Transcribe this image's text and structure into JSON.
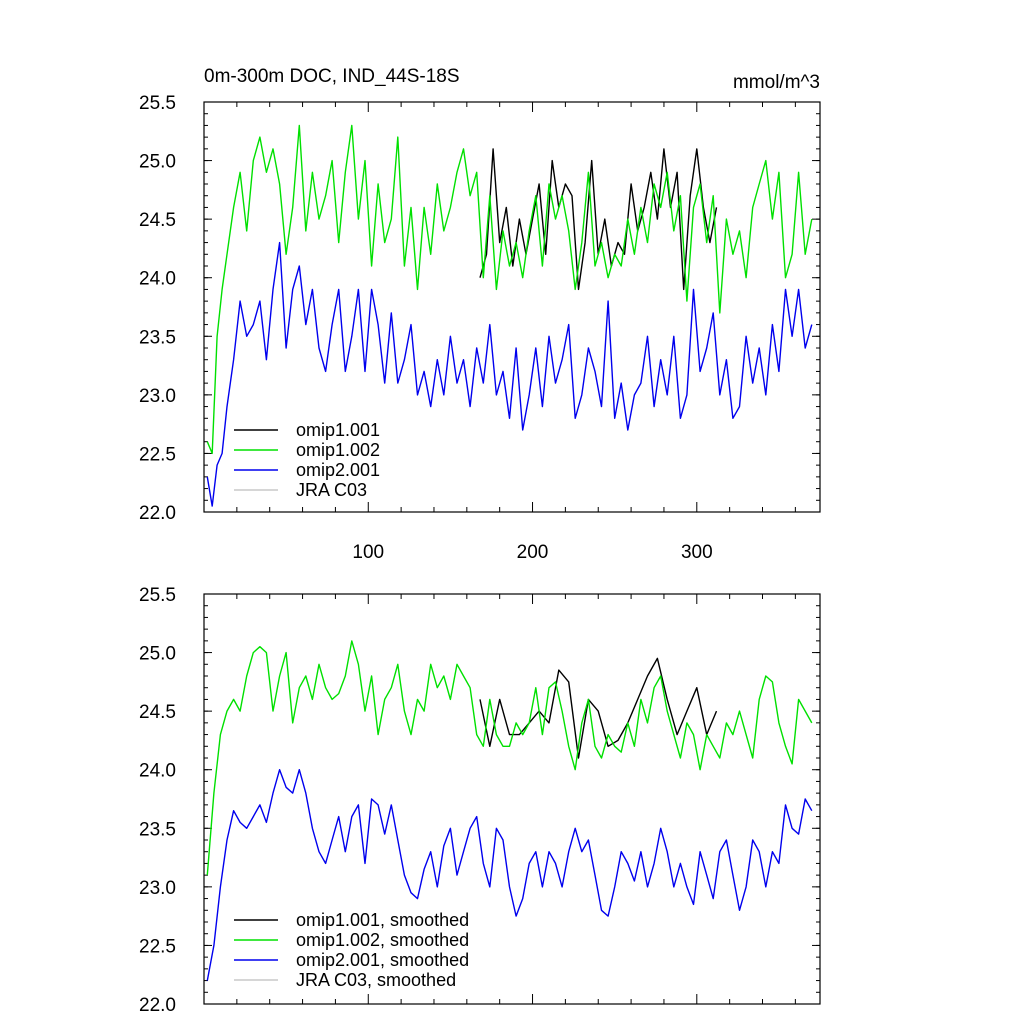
{
  "chart_data": [
    {
      "type": "line",
      "title": "0m-300m DOC, IND_44S-18S",
      "units": "mmol/m^3",
      "xlim": [
        0,
        375
      ],
      "ylim": [
        22.0,
        25.5
      ],
      "x_ticks": [
        100,
        200,
        300
      ],
      "x_tick_labels": [
        "100",
        "200",
        "300"
      ],
      "y_ticks": [
        22.0,
        22.5,
        23.0,
        23.5,
        24.0,
        24.5,
        25.0,
        25.5
      ],
      "y_tick_labels": [
        "22.0",
        "22.5",
        "23.0",
        "23.5",
        "24.0",
        "24.5",
        "25.0",
        "25.5"
      ],
      "legend_position": "bottom-left",
      "series": [
        {
          "name": "omip1.001",
          "color": "#000000",
          "x": [
            168,
            172,
            176,
            180,
            184,
            188,
            192,
            196,
            200,
            204,
            208,
            212,
            216,
            220,
            224,
            228,
            232,
            236,
            240,
            244,
            248,
            252,
            256,
            260,
            264,
            268,
            272,
            276,
            280,
            284,
            288,
            292,
            296,
            300,
            304,
            308,
            312
          ],
          "values": [
            24.0,
            24.2,
            25.1,
            24.3,
            24.6,
            24.1,
            24.5,
            24.2,
            24.5,
            24.8,
            24.2,
            25.0,
            24.6,
            24.8,
            24.7,
            23.9,
            24.3,
            25.0,
            24.2,
            24.5,
            24.1,
            24.3,
            24.2,
            24.8,
            24.4,
            24.6,
            24.9,
            24.5,
            25.1,
            24.6,
            24.9,
            23.9,
            24.7,
            25.1,
            24.6,
            24.3,
            24.6
          ]
        },
        {
          "name": "omip1.002",
          "color": "#00e000",
          "x": [
            2,
            5,
            8,
            11,
            14,
            18,
            22,
            26,
            30,
            34,
            38,
            42,
            46,
            50,
            54,
            58,
            62,
            66,
            70,
            74,
            78,
            82,
            86,
            90,
            94,
            98,
            102,
            106,
            110,
            114,
            118,
            122,
            126,
            130,
            134,
            138,
            142,
            146,
            150,
            154,
            158,
            162,
            166,
            170,
            174,
            178,
            182,
            186,
            190,
            194,
            198,
            202,
            206,
            210,
            214,
            218,
            222,
            226,
            230,
            234,
            238,
            242,
            246,
            250,
            254,
            258,
            262,
            266,
            270,
            274,
            278,
            282,
            286,
            290,
            294,
            298,
            302,
            306,
            310,
            314,
            318,
            322,
            326,
            330,
            334,
            338,
            342,
            346,
            350,
            354,
            358,
            362,
            366,
            370
          ],
          "values": [
            22.6,
            22.5,
            23.5,
            23.9,
            24.2,
            24.6,
            24.9,
            24.4,
            25.0,
            25.2,
            24.9,
            25.1,
            24.8,
            24.2,
            24.6,
            25.3,
            24.4,
            24.9,
            24.5,
            24.7,
            25.0,
            24.3,
            24.9,
            25.3,
            24.5,
            25.0,
            24.1,
            24.8,
            24.3,
            24.5,
            25.2,
            24.1,
            24.6,
            23.9,
            24.6,
            24.2,
            24.8,
            24.4,
            24.6,
            24.9,
            25.1,
            24.7,
            24.9,
            24.0,
            24.7,
            23.9,
            24.4,
            24.1,
            24.3,
            24.0,
            24.4,
            24.7,
            24.1,
            24.8,
            24.5,
            24.7,
            24.4,
            23.9,
            24.3,
            24.9,
            24.1,
            24.3,
            24.0,
            24.2,
            24.1,
            24.5,
            24.2,
            24.6,
            24.3,
            24.8,
            24.6,
            24.9,
            24.4,
            24.7,
            23.8,
            24.6,
            24.8,
            24.3,
            24.7,
            23.7,
            24.5,
            24.2,
            24.4,
            24.0,
            24.6,
            24.8,
            25.0,
            24.5,
            24.9,
            24.0,
            24.2,
            24.9,
            24.2,
            24.5
          ]
        },
        {
          "name": "omip2.001",
          "color": "#0000ee",
          "x": [
            2,
            5,
            8,
            11,
            14,
            18,
            22,
            26,
            30,
            34,
            38,
            42,
            46,
            50,
            54,
            58,
            62,
            66,
            70,
            74,
            78,
            82,
            86,
            90,
            94,
            98,
            102,
            106,
            110,
            114,
            118,
            122,
            126,
            130,
            134,
            138,
            142,
            146,
            150,
            154,
            158,
            162,
            166,
            170,
            174,
            178,
            182,
            186,
            190,
            194,
            198,
            202,
            206,
            210,
            214,
            218,
            222,
            226,
            230,
            234,
            238,
            242,
            246,
            250,
            254,
            258,
            262,
            266,
            270,
            274,
            278,
            282,
            286,
            290,
            294,
            298,
            302,
            306,
            310,
            314,
            318,
            322,
            326,
            330,
            334,
            338,
            342,
            346,
            350,
            354,
            358,
            362,
            366,
            370
          ],
          "values": [
            22.3,
            22.05,
            22.4,
            22.5,
            22.9,
            23.3,
            23.8,
            23.5,
            23.6,
            23.8,
            23.3,
            23.9,
            24.3,
            23.4,
            23.9,
            24.1,
            23.6,
            23.9,
            23.4,
            23.2,
            23.6,
            23.9,
            23.2,
            23.5,
            23.9,
            23.2,
            23.9,
            23.6,
            23.1,
            23.7,
            23.1,
            23.3,
            23.6,
            23.0,
            23.2,
            22.9,
            23.3,
            23.0,
            23.5,
            23.1,
            23.3,
            22.9,
            23.4,
            23.1,
            23.6,
            23.0,
            23.2,
            22.8,
            23.4,
            22.7,
            23.0,
            23.4,
            22.9,
            23.5,
            23.1,
            23.3,
            23.6,
            22.8,
            23.0,
            23.4,
            23.2,
            22.9,
            23.8,
            22.8,
            23.1,
            22.7,
            23.0,
            23.1,
            23.5,
            22.9,
            23.3,
            23.0,
            23.5,
            22.8,
            23.0,
            23.9,
            23.2,
            23.4,
            23.7,
            23.0,
            23.3,
            22.8,
            22.9,
            23.5,
            23.1,
            23.4,
            23.0,
            23.6,
            23.2,
            23.9,
            23.5,
            23.9,
            23.4,
            23.6
          ]
        },
        {
          "name": "JRA C03",
          "color": "#c8c8c8",
          "x": [],
          "values": []
        }
      ]
    },
    {
      "type": "line",
      "title": "",
      "xlim": [
        0,
        375
      ],
      "ylim": [
        22.0,
        25.5
      ],
      "x_ticks": [
        100,
        200,
        300
      ],
      "y_ticks": [
        22.0,
        22.5,
        23.0,
        23.5,
        24.0,
        24.5,
        25.0,
        25.5
      ],
      "y_tick_labels": [
        "22.0",
        "22.5",
        "23.0",
        "23.5",
        "24.0",
        "24.5",
        "25.0",
        "25.5"
      ],
      "legend_position": "bottom-left",
      "series": [
        {
          "name": "omip1.001, smoothed",
          "color": "#000000",
          "x": [
            168,
            174,
            180,
            186,
            192,
            198,
            204,
            210,
            216,
            222,
            228,
            234,
            240,
            246,
            252,
            258,
            264,
            270,
            276,
            282,
            288,
            294,
            300,
            306,
            312
          ],
          "values": [
            24.6,
            24.2,
            24.6,
            24.3,
            24.3,
            24.4,
            24.5,
            24.4,
            24.85,
            24.75,
            24.1,
            24.6,
            24.5,
            24.2,
            24.25,
            24.4,
            24.6,
            24.8,
            24.95,
            24.6,
            24.3,
            24.5,
            24.7,
            24.3,
            24.5
          ]
        },
        {
          "name": "omip1.002, smoothed",
          "color": "#00e000",
          "x": [
            2,
            6,
            10,
            14,
            18,
            22,
            26,
            30,
            34,
            38,
            42,
            46,
            50,
            54,
            58,
            62,
            66,
            70,
            74,
            78,
            82,
            86,
            90,
            94,
            98,
            102,
            106,
            110,
            114,
            118,
            122,
            126,
            130,
            134,
            138,
            142,
            146,
            150,
            154,
            158,
            162,
            166,
            170,
            174,
            178,
            182,
            186,
            190,
            194,
            198,
            202,
            206,
            210,
            214,
            218,
            222,
            226,
            230,
            234,
            238,
            242,
            246,
            250,
            254,
            258,
            262,
            266,
            270,
            274,
            278,
            282,
            286,
            290,
            294,
            298,
            302,
            306,
            310,
            314,
            318,
            322,
            326,
            330,
            334,
            338,
            342,
            346,
            350,
            354,
            358,
            362,
            366,
            370
          ],
          "values": [
            23.1,
            23.8,
            24.3,
            24.5,
            24.6,
            24.5,
            24.8,
            25.0,
            25.05,
            25.0,
            24.5,
            24.8,
            25.0,
            24.4,
            24.7,
            24.8,
            24.6,
            24.9,
            24.7,
            24.6,
            24.65,
            24.8,
            25.1,
            24.9,
            24.5,
            24.8,
            24.3,
            24.6,
            24.7,
            24.9,
            24.5,
            24.3,
            24.6,
            24.5,
            24.9,
            24.7,
            24.8,
            24.6,
            24.9,
            24.8,
            24.7,
            24.3,
            24.2,
            24.6,
            24.3,
            24.2,
            24.2,
            24.4,
            24.3,
            24.4,
            24.7,
            24.3,
            24.7,
            24.75,
            24.5,
            24.2,
            24.0,
            24.4,
            24.6,
            24.2,
            24.1,
            24.3,
            24.2,
            24.15,
            24.4,
            24.2,
            24.6,
            24.4,
            24.7,
            24.8,
            24.5,
            24.3,
            24.1,
            24.4,
            24.3,
            24.0,
            24.3,
            24.2,
            24.1,
            24.4,
            24.3,
            24.5,
            24.3,
            24.1,
            24.6,
            24.8,
            24.75,
            24.4,
            24.2,
            24.05,
            24.6,
            24.5,
            24.4
          ]
        },
        {
          "name": "omip2.001, smoothed",
          "color": "#0000ee",
          "x": [
            2,
            6,
            10,
            14,
            18,
            22,
            26,
            30,
            34,
            38,
            42,
            46,
            50,
            54,
            58,
            62,
            66,
            70,
            74,
            78,
            82,
            86,
            90,
            94,
            98,
            102,
            106,
            110,
            114,
            118,
            122,
            126,
            130,
            134,
            138,
            142,
            146,
            150,
            154,
            158,
            162,
            166,
            170,
            174,
            178,
            182,
            186,
            190,
            194,
            198,
            202,
            206,
            210,
            214,
            218,
            222,
            226,
            230,
            234,
            238,
            242,
            246,
            250,
            254,
            258,
            262,
            266,
            270,
            274,
            278,
            282,
            286,
            290,
            294,
            298,
            302,
            306,
            310,
            314,
            318,
            322,
            326,
            330,
            334,
            338,
            342,
            346,
            350,
            354,
            358,
            362,
            366,
            370
          ],
          "values": [
            22.2,
            22.5,
            23.0,
            23.4,
            23.65,
            23.55,
            23.5,
            23.6,
            23.7,
            23.55,
            23.8,
            24.0,
            23.85,
            23.8,
            24.0,
            23.8,
            23.5,
            23.3,
            23.2,
            23.4,
            23.6,
            23.3,
            23.6,
            23.7,
            23.2,
            23.75,
            23.7,
            23.45,
            23.7,
            23.4,
            23.1,
            22.95,
            22.9,
            23.15,
            23.3,
            23.0,
            23.35,
            23.5,
            23.1,
            23.3,
            23.5,
            23.6,
            23.2,
            23.0,
            23.5,
            23.4,
            23.0,
            22.75,
            22.9,
            23.2,
            23.3,
            23.0,
            23.3,
            23.2,
            23.0,
            23.3,
            23.5,
            23.3,
            23.4,
            23.1,
            22.8,
            22.75,
            23.0,
            23.3,
            23.2,
            23.05,
            23.3,
            23.0,
            23.2,
            23.5,
            23.3,
            23.0,
            23.2,
            23.0,
            22.85,
            23.3,
            23.1,
            22.9,
            23.3,
            23.4,
            23.1,
            22.8,
            23.0,
            23.4,
            23.3,
            23.0,
            23.3,
            23.2,
            23.7,
            23.5,
            23.45,
            23.75,
            23.65
          ]
        },
        {
          "name": "JRA C03, smoothed",
          "color": "#c8c8c8",
          "x": [],
          "values": []
        }
      ]
    }
  ]
}
